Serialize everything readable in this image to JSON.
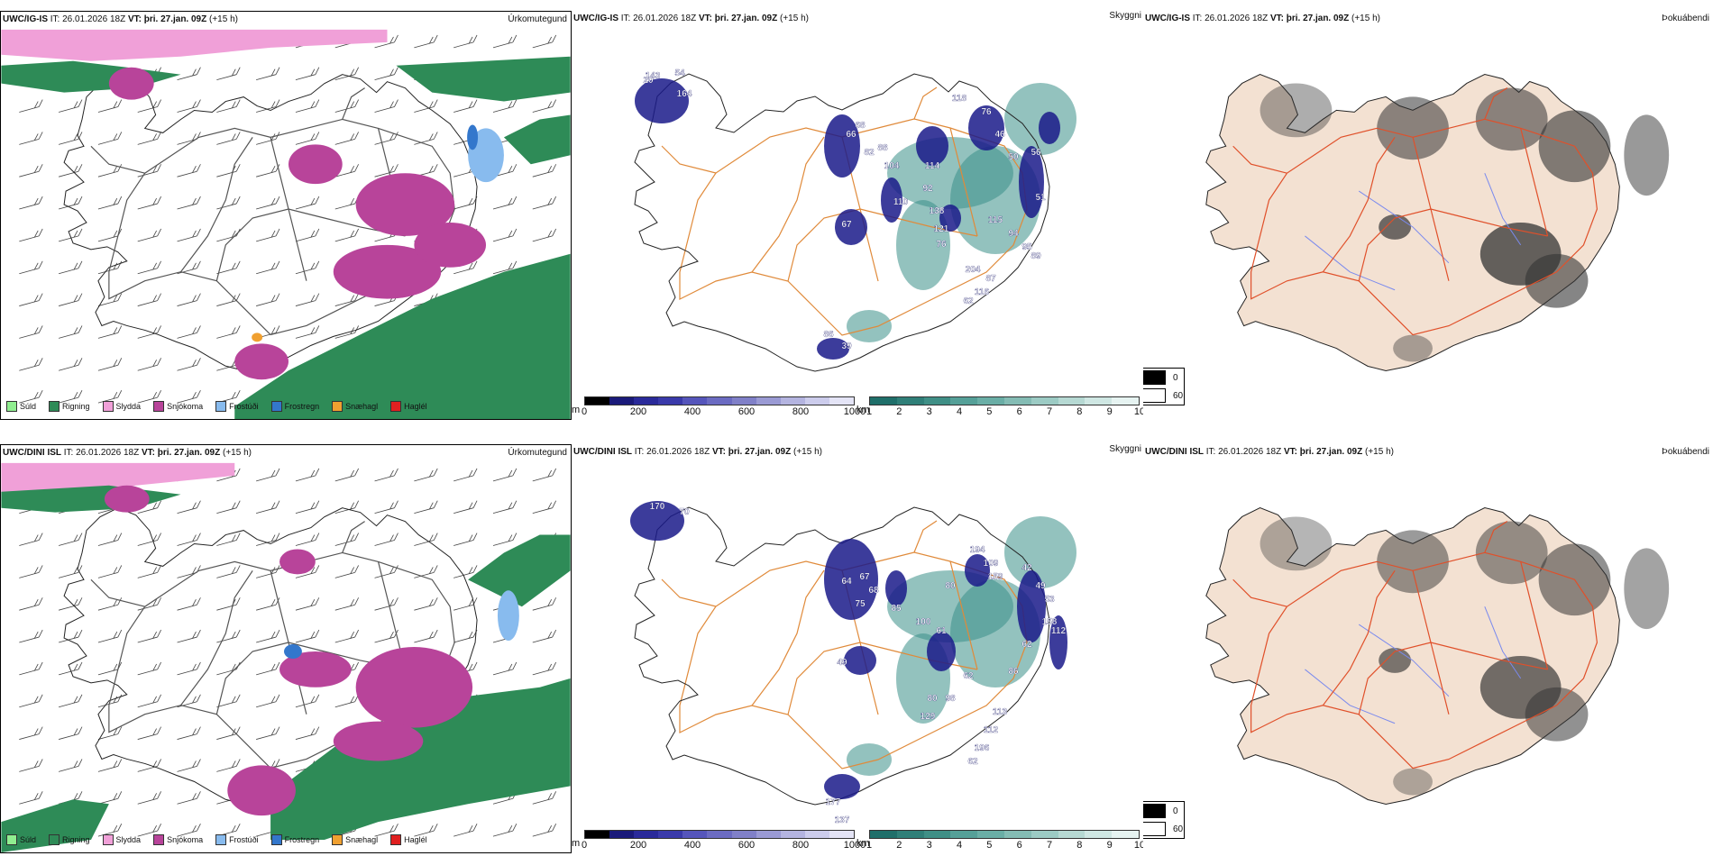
{
  "rows": [
    {
      "model": "UWC/IG-IS",
      "it_label": "IT:",
      "it_value": "26.01.2026 18Z",
      "vt_label": "VT:",
      "vt_value": "þri. 27.jan. 09Z",
      "lead": "(+15 h)",
      "precip_title": "Úrkomutegund",
      "cloud_title": "Skyggni",
      "fog_title": "Þokuábendi",
      "cloud_labels": [
        "143",
        "54",
        "164",
        "20",
        "66",
        "68",
        "82",
        "88",
        "104",
        "67",
        "110",
        "114",
        "92",
        "138",
        "121",
        "76",
        "118",
        "76",
        "46",
        "50",
        "56",
        "51",
        "115",
        "94",
        "95",
        "89",
        "204",
        "87",
        "116",
        "62",
        "86",
        "39"
      ]
    },
    {
      "model": "UWC/DINI ISL",
      "it_label": "IT:",
      "it_value": "26.01.2026 18Z",
      "vt_label": "VT:",
      "vt_value": "þri. 27.jan. 09Z",
      "lead": "(+15 h)",
      "precip_title": "Úrkomutegund",
      "cloud_title": "Skyggni",
      "fog_title": "Þokuábendi",
      "cloud_labels": [
        "170",
        "70",
        "64",
        "67",
        "68",
        "75",
        "85",
        "100",
        "80",
        "194",
        "109",
        "159",
        "42",
        "49",
        "53",
        "158",
        "112",
        "62",
        "86",
        "49",
        "80",
        "129",
        "62",
        "98",
        "61",
        "113",
        "112",
        "196",
        "62",
        "177",
        "137"
      ]
    }
  ],
  "precip_legend": [
    {
      "label": "Súld",
      "color": "#90ee90"
    },
    {
      "label": "Rigning",
      "color": "#2e8b57"
    },
    {
      "label": "Slydda",
      "color": "#f0a0d8"
    },
    {
      "label": "Snjókoma",
      "color": "#b8449a"
    },
    {
      "label": "Frostúði",
      "color": "#88bbee"
    },
    {
      "label": "Frostregn",
      "color": "#3377cc"
    },
    {
      "label": "Snæhagl",
      "color": "#f0a030"
    },
    {
      "label": "Haglél",
      "color": "#e02020"
    }
  ],
  "cloud_base_scale": {
    "unit": "m",
    "ticks": [
      "0",
      "200",
      "400",
      "600",
      "800",
      "1000"
    ],
    "colors": [
      "#000000",
      "#1a1a7a",
      "#2a2a9a",
      "#3a3aaa",
      "#5555bb",
      "#6b6bc2",
      "#8080c8",
      "#9a9ad4",
      "#b4b4e0",
      "#ccccec",
      "#e4e4f6"
    ]
  },
  "visibility_scale": {
    "unit": "km",
    "ticks": [
      "1",
      "2",
      "3",
      "4",
      "5",
      "6",
      "7",
      "8",
      "9",
      "10"
    ],
    "colors": [
      "#1f6f6a",
      "#2f7f78",
      "#3f8f86",
      "#55a098",
      "#6aaea6",
      "#84bcb4",
      "#9ccbc4",
      "#b6d9d3",
      "#cfe7e3",
      "#e6f3f1"
    ]
  },
  "fog_scale": {
    "items": [
      {
        "label": "0",
        "color": "#000000"
      },
      {
        "label": "60",
        "color": "#ffffff"
      }
    ]
  },
  "colors": {
    "road": "#e08a3a",
    "coast": "#222222",
    "land_fog": "#f3e1d2",
    "rain": "#2e8b57",
    "snow": "#b8449a",
    "sleet": "#f0a0d8",
    "cloud_low": "#1a1a8a",
    "vis_fog": "#3a9088"
  }
}
